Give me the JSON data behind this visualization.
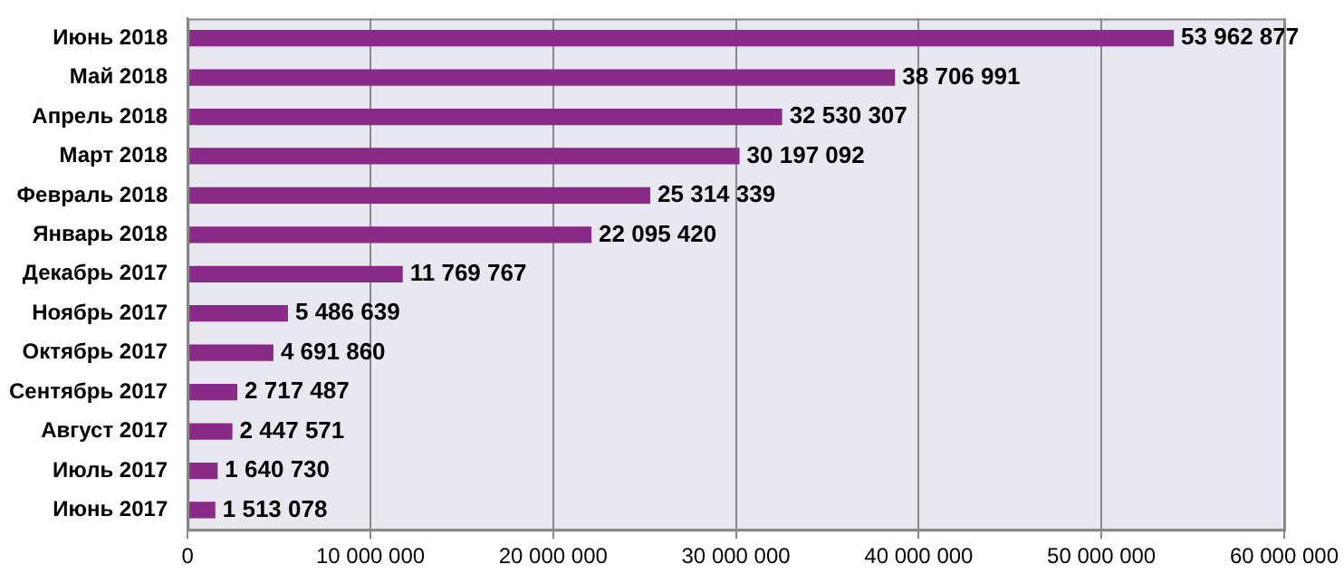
{
  "chart_data": {
    "type": "bar",
    "orientation": "horizontal",
    "categories": [
      "Июнь 2018",
      "Май 2018",
      "Апрель 2018",
      "Март 2018",
      "Февраль 2018",
      "Январь 2018",
      "Декабрь 2017",
      "Ноябрь 2017",
      "Октябрь 2017",
      "Сентябрь 2017",
      "Август 2017",
      "Июль 2017",
      "Июнь 2017"
    ],
    "values": [
      53962877,
      38706991,
      32530307,
      30197092,
      25314339,
      22095420,
      11769767,
      5486639,
      4691860,
      2717487,
      2447571,
      1640730,
      1513078
    ],
    "value_labels": [
      "53 962 877",
      "38 706 991",
      "32 530 307",
      "30 197 092",
      "25 314 339",
      "22 095 420",
      "11 769 767",
      "5 486 639",
      "4 691 860",
      "2 717 487",
      "2 447 571",
      "1 640 730",
      "1 513 078"
    ],
    "color": "#8a2a88",
    "xlim": [
      0,
      60000000
    ],
    "xticks": [
      0,
      {
        "value": 10000000,
        "label": "10 000 000"
      },
      {
        "value": 20000000,
        "label": "20 000 000"
      },
      {
        "value": 30000000,
        "label": "30 000 000"
      },
      {
        "value": 40000000,
        "label": "40 000 000"
      },
      {
        "value": 50000000,
        "label": "50 000 000"
      },
      {
        "value": 60000000,
        "label": "60 000 000"
      }
    ],
    "grid": "x",
    "legend": false
  }
}
